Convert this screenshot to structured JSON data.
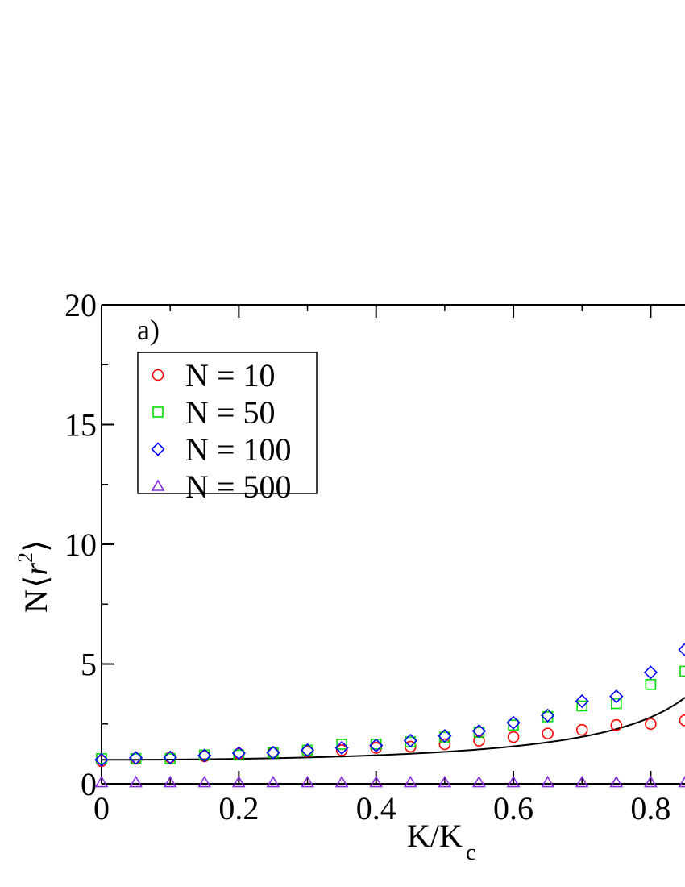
{
  "chart_data": {
    "type": "scatter",
    "panel_label": "a)",
    "xlabel": "K/K",
    "xlabel_sub": "c",
    "ylabel_prefix": "N",
    "ylabel_var": "r",
    "ylabel_exp": "2",
    "xlim": [
      0,
      0.85
    ],
    "ylim": [
      0,
      20
    ],
    "x_ticks": [
      0,
      0.2,
      0.4,
      0.6,
      0.8
    ],
    "x_tick_labels": [
      "0",
      "0.2",
      "0.4",
      "0.6",
      "0.8"
    ],
    "y_ticks": [
      0,
      5,
      10,
      15,
      20
    ],
    "y_tick_labels": [
      "0",
      "5",
      "10",
      "15",
      "20"
    ],
    "legend_position": "top-left",
    "x": [
      0,
      0.05,
      0.1,
      0.15,
      0.2,
      0.25,
      0.3,
      0.35,
      0.4,
      0.45,
      0.5,
      0.55,
      0.6,
      0.65,
      0.7,
      0.75,
      0.8,
      0.85
    ],
    "series": [
      {
        "name": "N = 10",
        "marker": "circle",
        "color": "#ff0000",
        "values": [
          0.95,
          1.05,
          1.1,
          1.15,
          1.25,
          1.3,
          1.35,
          1.4,
          1.5,
          1.55,
          1.65,
          1.8,
          1.95,
          2.1,
          2.25,
          2.45,
          2.5,
          2.65
        ]
      },
      {
        "name": "N = 50",
        "marker": "square",
        "color": "#00dd00",
        "values": [
          1.05,
          1.05,
          1.05,
          1.2,
          1.2,
          1.3,
          1.4,
          1.65,
          1.65,
          1.75,
          1.95,
          2.15,
          2.45,
          2.8,
          3.25,
          3.35,
          4.15,
          4.7
        ]
      },
      {
        "name": "N = 100",
        "marker": "diamond",
        "color": "#0000ff",
        "values": [
          1.0,
          1.08,
          1.1,
          1.18,
          1.28,
          1.3,
          1.4,
          1.5,
          1.6,
          1.8,
          2.0,
          2.2,
          2.55,
          2.85,
          3.45,
          3.65,
          4.65,
          5.6
        ]
      },
      {
        "name": "N = 500",
        "marker": "triangle",
        "color": "#8a2be2",
        "values": [
          0.05,
          0.05,
          0.05,
          0.05,
          0.05,
          0.05,
          0.05,
          0.05,
          0.05,
          0.05,
          0.05,
          0.05,
          0.05,
          0.05,
          0.05,
          0.05,
          0.05,
          0.05
        ]
      }
    ],
    "theory_curve": {
      "color": "#000000",
      "formula": "1/(1-(K/Kc)^2)",
      "x_range": [
        0,
        0.85
      ]
    },
    "zero_line": true
  }
}
